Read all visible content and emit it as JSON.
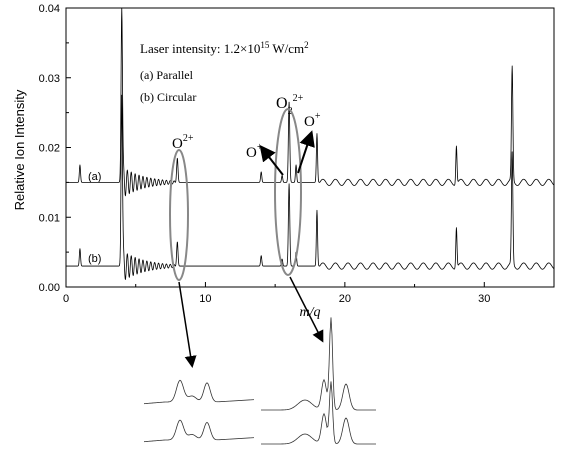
{
  "chart_data": {
    "type": "line",
    "xlabel": "m/q",
    "ylabel": "Relative Ion Intensity",
    "xlim": [
      0,
      35
    ],
    "ylim": [
      0,
      0.04
    ],
    "x_ticks": [
      "0",
      "10",
      "20",
      "30"
    ],
    "y_ticks": [
      "0.00",
      "0.01",
      "0.02",
      "0.03",
      "0.04"
    ],
    "legend": {
      "title": "Laser intensity: 1.2×10",
      "title_exp": "15",
      "title_unit": " W/cm",
      "title_unit_exp": "2",
      "entries": [
        "(a) Parallel",
        "(b) Circular"
      ]
    },
    "series": [
      {
        "name": "(a)",
        "baseline": 0.015,
        "peaks": [
          {
            "x": 1.0,
            "y": 0.0175
          },
          {
            "x": 4.0,
            "y": 0.04
          },
          {
            "x": 7.95,
            "y": 0.0165
          },
          {
            "x": 8.0,
            "y": 0.0175
          },
          {
            "x": 14.0,
            "y": 0.0165
          },
          {
            "x": 15.5,
            "y": 0.016
          },
          {
            "x": 16.0,
            "y": 0.0265
          },
          {
            "x": 16.5,
            "y": 0.0175
          },
          {
            "x": 18.0,
            "y": 0.022
          },
          {
            "x": 28.0,
            "y": 0.0205
          },
          {
            "x": 32.0,
            "y": 0.0313
          }
        ]
      },
      {
        "name": "(b)",
        "baseline": 0.003,
        "peaks": [
          {
            "x": 1.0,
            "y": 0.0055
          },
          {
            "x": 4.0,
            "y": 0.0275
          },
          {
            "x": 7.95,
            "y": 0.0045
          },
          {
            "x": 8.0,
            "y": 0.0055
          },
          {
            "x": 14.0,
            "y": 0.0045
          },
          {
            "x": 15.5,
            "y": 0.004
          },
          {
            "x": 16.0,
            "y": 0.0148
          },
          {
            "x": 16.5,
            "y": 0.005
          },
          {
            "x": 18.0,
            "y": 0.011
          },
          {
            "x": 28.0,
            "y": 0.0088
          },
          {
            "x": 32.0,
            "y": 0.019
          }
        ]
      }
    ],
    "annotations": {
      "o2plus_a": "O",
      "o2plus_a_sup": "2+",
      "o2_2plus": "O",
      "o2_2plus_sub": "2",
      "o2_2plus_sup": "2+",
      "oplus_left": "O",
      "oplus_left_sup": "+",
      "oplus_right": "O",
      "oplus_right_sup": "+",
      "label_a": "(a)",
      "label_b": "(b)"
    }
  }
}
